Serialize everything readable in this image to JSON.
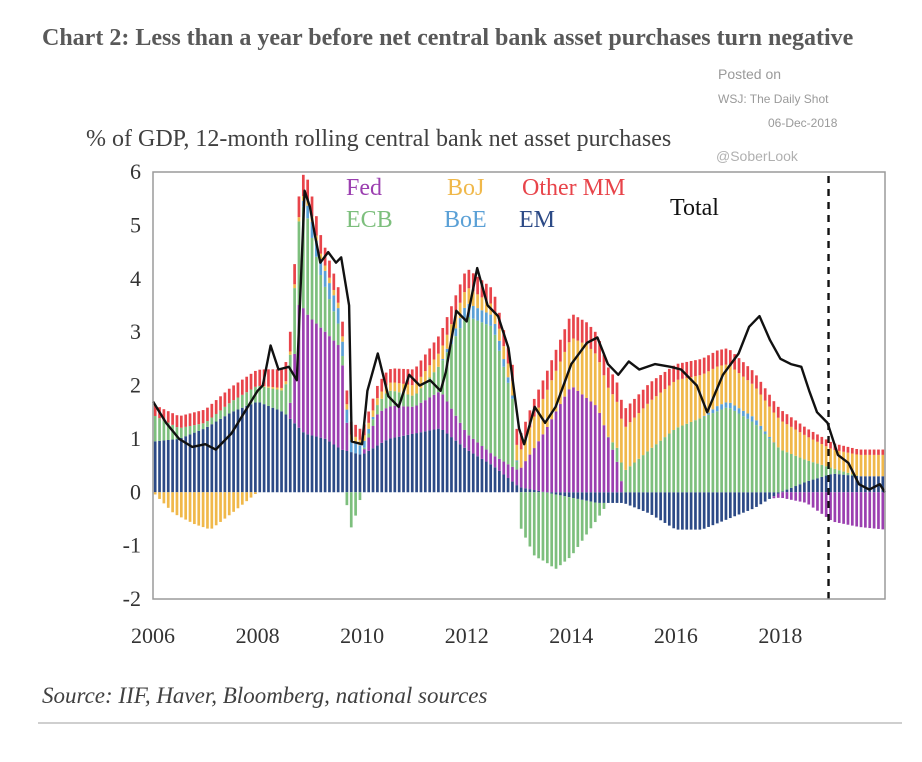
{
  "header": {
    "title": "Chart 2:  Less than a year before net central bank asset purchases turn negative",
    "posted_line1": "Posted on",
    "posted_line2": "WSJ: The Daily Shot",
    "posted_date": "06-Dec-2018",
    "posted_handle": "@SoberLook"
  },
  "footer": {
    "source": "Source: IIF, Haver, Bloomberg, national sources"
  },
  "chart_data": {
    "type": "bar",
    "title": "% of GDP, 12-month rolling central bank net asset purchases",
    "xlabel": "",
    "ylabel": "",
    "ylim": [
      -2,
      6
    ],
    "y_ticks": [
      "6",
      "5",
      "4",
      "3",
      "2",
      "1",
      "0",
      "-1",
      "-2"
    ],
    "x_ticks": [
      "2006",
      "2008",
      "2010",
      "2012",
      "2014",
      "2016",
      "2018"
    ],
    "x_range": [
      2006.0,
      2020.0
    ],
    "dashed_marker_x": 2018.92,
    "colors": {
      "Fed": "#9b3fb0",
      "ECB": "#7dbf7d",
      "BoJ": "#f0b84a",
      "BoE": "#5aa0d6",
      "Other MM": "#e8444a",
      "EM": "#2c4a86",
      "Total": "#111111"
    },
    "legend": [
      {
        "name": "Fed",
        "color": "#9b3fb0"
      },
      {
        "name": "BoJ",
        "color": "#f0b84a"
      },
      {
        "name": "Other MM",
        "color": "#e8444a"
      },
      {
        "name": "ECB",
        "color": "#7dbf7d"
      },
      {
        "name": "BoE",
        "color": "#5aa0d6"
      },
      {
        "name": "EM",
        "color": "#2c4a86"
      },
      {
        "name": "Total",
        "color": "#111111"
      }
    ],
    "series_order": [
      "EM",
      "Fed",
      "ECB",
      "BoE",
      "BoJ",
      "Other MM"
    ],
    "series": [
      {
        "name": "EM",
        "points": [
          [
            2006.0,
            0.95
          ],
          [
            2006.5,
            1.0
          ],
          [
            2007.0,
            1.2
          ],
          [
            2007.5,
            1.5
          ],
          [
            2008.0,
            1.7
          ],
          [
            2008.5,
            1.5
          ],
          [
            2008.9,
            1.1
          ],
          [
            2009.3,
            1.0
          ],
          [
            2009.6,
            0.8
          ],
          [
            2010.0,
            0.7
          ],
          [
            2010.5,
            1.0
          ],
          [
            2011.0,
            1.1
          ],
          [
            2011.5,
            1.2
          ],
          [
            2012.0,
            0.8
          ],
          [
            2012.5,
            0.5
          ],
          [
            2013.0,
            0.1
          ],
          [
            2013.5,
            0.0
          ],
          [
            2014.0,
            -0.1
          ],
          [
            2014.5,
            -0.2
          ],
          [
            2015.0,
            -0.2
          ],
          [
            2015.5,
            -0.4
          ],
          [
            2016.0,
            -0.7
          ],
          [
            2016.5,
            -0.7
          ],
          [
            2017.0,
            -0.5
          ],
          [
            2017.5,
            -0.3
          ],
          [
            2018.0,
            0.0
          ],
          [
            2018.5,
            0.2
          ],
          [
            2019.0,
            0.35
          ],
          [
            2019.5,
            0.3
          ],
          [
            2020.0,
            0.3
          ]
        ]
      },
      {
        "name": "Fed",
        "points": [
          [
            2006.0,
            0.0
          ],
          [
            2008.0,
            0.0
          ],
          [
            2008.6,
            0.0
          ],
          [
            2008.8,
            2.4
          ],
          [
            2009.0,
            2.2
          ],
          [
            2009.3,
            2.0
          ],
          [
            2009.6,
            1.9
          ],
          [
            2009.75,
            0.0
          ],
          [
            2010.0,
            0.0
          ],
          [
            2010.3,
            0.6
          ],
          [
            2010.6,
            0.6
          ],
          [
            2011.0,
            0.5
          ],
          [
            2011.5,
            0.7
          ],
          [
            2012.0,
            0.3
          ],
          [
            2012.5,
            0.2
          ],
          [
            2013.0,
            0.3
          ],
          [
            2013.3,
            0.8
          ],
          [
            2013.7,
            1.5
          ],
          [
            2014.0,
            2.0
          ],
          [
            2014.5,
            1.6
          ],
          [
            2014.9,
            0.5
          ],
          [
            2015.0,
            0.0
          ],
          [
            2016.0,
            0.0
          ],
          [
            2017.0,
            0.0
          ],
          [
            2017.8,
            0.0
          ],
          [
            2018.0,
            -0.1
          ],
          [
            2018.5,
            -0.2
          ],
          [
            2019.0,
            -0.55
          ],
          [
            2019.5,
            -0.65
          ],
          [
            2020.0,
            -0.7
          ]
        ]
      },
      {
        "name": "ECB",
        "points": [
          [
            2006.0,
            0.5
          ],
          [
            2006.5,
            0.2
          ],
          [
            2007.0,
            0.1
          ],
          [
            2007.5,
            0.2
          ],
          [
            2008.0,
            0.3
          ],
          [
            2008.5,
            0.4
          ],
          [
            2008.9,
            2.0
          ],
          [
            2009.2,
            1.0
          ],
          [
            2009.6,
            0.3
          ],
          [
            2009.8,
            -0.7
          ],
          [
            2010.0,
            0.0
          ],
          [
            2010.5,
            0.3
          ],
          [
            2011.0,
            0.2
          ],
          [
            2011.5,
            0.5
          ],
          [
            2012.0,
            2.2
          ],
          [
            2012.5,
            2.4
          ],
          [
            2012.9,
            1.2
          ],
          [
            2013.0,
            -0.6
          ],
          [
            2013.3,
            -1.2
          ],
          [
            2013.7,
            -1.4
          ],
          [
            2014.0,
            -1.1
          ],
          [
            2014.5,
            -0.3
          ],
          [
            2014.9,
            0.3
          ],
          [
            2015.5,
            0.8
          ],
          [
            2016.0,
            1.2
          ],
          [
            2016.5,
            1.4
          ],
          [
            2017.0,
            1.6
          ],
          [
            2017.5,
            1.3
          ],
          [
            2018.0,
            0.8
          ],
          [
            2018.5,
            0.4
          ],
          [
            2019.0,
            0.1
          ],
          [
            2019.5,
            0.0
          ],
          [
            2020.0,
            0.0
          ]
        ]
      },
      {
        "name": "BoE",
        "points": [
          [
            2006.0,
            0.0
          ],
          [
            2008.8,
            0.0
          ],
          [
            2009.0,
            0.3
          ],
          [
            2009.5,
            0.3
          ],
          [
            2009.9,
            0.2
          ],
          [
            2010.3,
            0.0
          ],
          [
            2011.5,
            0.0
          ],
          [
            2012.0,
            0.25
          ],
          [
            2012.6,
            0.2
          ],
          [
            2013.0,
            0.0
          ],
          [
            2016.5,
            0.0
          ],
          [
            2016.8,
            0.1
          ],
          [
            2017.5,
            0.1
          ],
          [
            2017.9,
            0.0
          ],
          [
            2020.0,
            0.0
          ]
        ]
      },
      {
        "name": "BoJ",
        "points": [
          [
            2006.0,
            0.0
          ],
          [
            2006.4,
            -0.4
          ],
          [
            2006.8,
            -0.6
          ],
          [
            2007.1,
            -0.7
          ],
          [
            2007.5,
            -0.4
          ],
          [
            2008.0,
            0.0
          ],
          [
            2009.0,
            0.1
          ],
          [
            2010.0,
            0.1
          ],
          [
            2011.0,
            0.2
          ],
          [
            2012.0,
            0.3
          ],
          [
            2012.5,
            0.2
          ],
          [
            2013.0,
            0.3
          ],
          [
            2013.3,
            0.6
          ],
          [
            2013.8,
            0.8
          ],
          [
            2014.0,
            0.9
          ],
          [
            2014.3,
            1.0
          ],
          [
            2014.8,
            0.9
          ],
          [
            2015.0,
            0.8
          ],
          [
            2015.5,
            0.9
          ],
          [
            2016.0,
            0.9
          ],
          [
            2016.5,
            0.8
          ],
          [
            2017.0,
            0.7
          ],
          [
            2017.5,
            0.6
          ],
          [
            2018.0,
            0.55
          ],
          [
            2018.5,
            0.45
          ],
          [
            2019.0,
            0.35
          ],
          [
            2019.5,
            0.4
          ],
          [
            2020.0,
            0.4
          ]
        ]
      },
      {
        "name": "Other MM",
        "points": [
          [
            2006.0,
            0.2
          ],
          [
            2007.0,
            0.25
          ],
          [
            2008.0,
            0.3
          ],
          [
            2008.9,
            0.4
          ],
          [
            2009.5,
            0.3
          ],
          [
            2010.0,
            0.2
          ],
          [
            2011.0,
            0.3
          ],
          [
            2012.0,
            0.35
          ],
          [
            2012.5,
            0.3
          ],
          [
            2013.0,
            0.3
          ],
          [
            2013.5,
            0.35
          ],
          [
            2014.0,
            0.45
          ],
          [
            2014.5,
            0.4
          ],
          [
            2015.0,
            0.35
          ],
          [
            2015.5,
            0.35
          ],
          [
            2016.0,
            0.3
          ],
          [
            2016.5,
            0.3
          ],
          [
            2017.0,
            0.3
          ],
          [
            2017.5,
            0.25
          ],
          [
            2018.0,
            0.2
          ],
          [
            2018.5,
            0.15
          ],
          [
            2019.0,
            0.12
          ],
          [
            2019.5,
            0.1
          ],
          [
            2020.0,
            0.1
          ]
        ]
      },
      {
        "name": "Total",
        "points": [
          [
            2006.0,
            1.7
          ],
          [
            2006.25,
            1.3
          ],
          [
            2006.5,
            1.0
          ],
          [
            2006.75,
            0.85
          ],
          [
            2007.0,
            0.9
          ],
          [
            2007.2,
            0.8
          ],
          [
            2007.5,
            1.1
          ],
          [
            2007.75,
            1.5
          ],
          [
            2008.0,
            1.9
          ],
          [
            2008.1,
            2.0
          ],
          [
            2008.25,
            2.75
          ],
          [
            2008.4,
            2.3
          ],
          [
            2008.6,
            2.35
          ],
          [
            2008.75,
            2.1
          ],
          [
            2008.9,
            5.65
          ],
          [
            2009.0,
            5.35
          ],
          [
            2009.1,
            4.8
          ],
          [
            2009.2,
            4.3
          ],
          [
            2009.35,
            4.5
          ],
          [
            2009.5,
            4.3
          ],
          [
            2009.6,
            4.4
          ],
          [
            2009.75,
            3.5
          ],
          [
            2009.8,
            0.95
          ],
          [
            2010.0,
            0.9
          ],
          [
            2010.1,
            1.9
          ],
          [
            2010.3,
            2.6
          ],
          [
            2010.5,
            1.8
          ],
          [
            2010.7,
            1.6
          ],
          [
            2010.9,
            2.2
          ],
          [
            2011.1,
            2.0
          ],
          [
            2011.3,
            2.1
          ],
          [
            2011.5,
            1.9
          ],
          [
            2011.6,
            2.25
          ],
          [
            2011.8,
            3.4
          ],
          [
            2012.0,
            3.2
          ],
          [
            2012.2,
            4.2
          ],
          [
            2012.4,
            3.5
          ],
          [
            2012.6,
            3.3
          ],
          [
            2012.8,
            2.7
          ],
          [
            2013.0,
            1.2
          ],
          [
            2013.1,
            0.9
          ],
          [
            2013.3,
            1.6
          ],
          [
            2013.5,
            1.3
          ],
          [
            2013.7,
            1.6
          ],
          [
            2014.0,
            2.4
          ],
          [
            2014.3,
            2.8
          ],
          [
            2014.5,
            2.9
          ],
          [
            2014.7,
            2.4
          ],
          [
            2014.9,
            2.2
          ],
          [
            2015.1,
            2.45
          ],
          [
            2015.3,
            2.3
          ],
          [
            2015.6,
            2.4
          ],
          [
            2015.9,
            2.35
          ],
          [
            2016.1,
            2.3
          ],
          [
            2016.4,
            2.0
          ],
          [
            2016.6,
            1.5
          ],
          [
            2016.9,
            2.2
          ],
          [
            2017.2,
            2.6
          ],
          [
            2017.4,
            3.1
          ],
          [
            2017.6,
            3.3
          ],
          [
            2017.8,
            2.85
          ],
          [
            2018.0,
            2.5
          ],
          [
            2018.2,
            2.4
          ],
          [
            2018.4,
            2.35
          ],
          [
            2018.55,
            1.9
          ],
          [
            2018.7,
            1.5
          ],
          [
            2018.9,
            1.3
          ],
          [
            2019.1,
            0.7
          ],
          [
            2019.3,
            0.55
          ],
          [
            2019.5,
            0.15
          ],
          [
            2019.7,
            0.05
          ],
          [
            2019.9,
            0.15
          ],
          [
            2020.0,
            0.0
          ]
        ]
      }
    ]
  }
}
